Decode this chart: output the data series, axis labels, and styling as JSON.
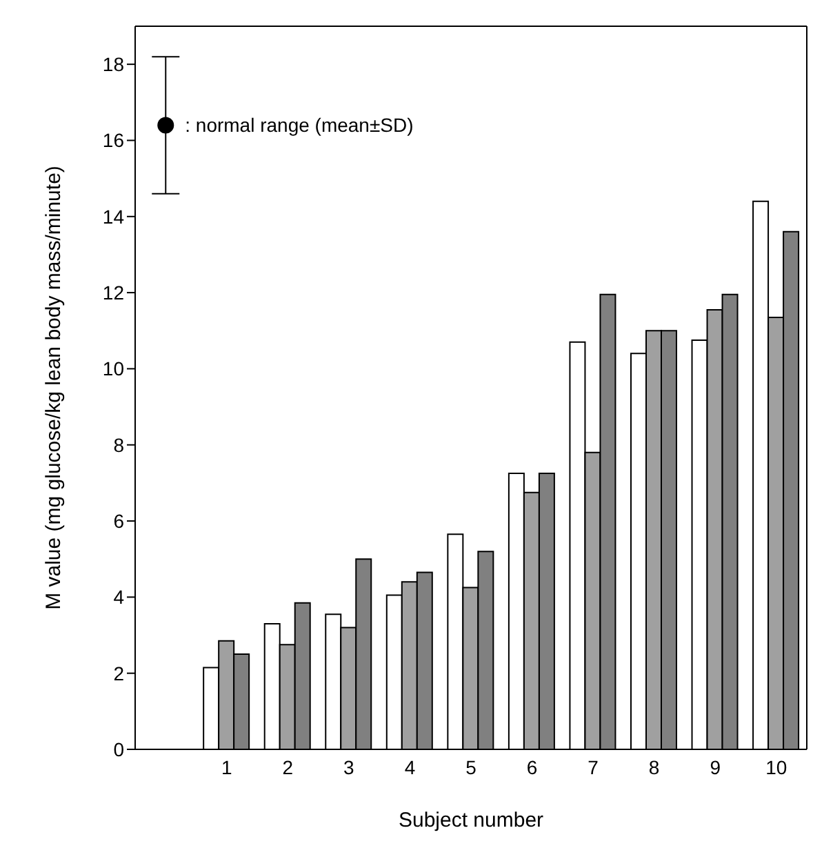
{
  "chart_data": {
    "type": "bar",
    "xlabel": "Subject number",
    "ylabel": "M value (mg glucose/kg lean body mass/minute)",
    "categories": [
      null,
      "1",
      "2",
      "3",
      "4",
      "5",
      "6",
      "7",
      "8",
      "9",
      "10"
    ],
    "series": [
      {
        "color": "#ffffff",
        "values": [
          null,
          2.15,
          3.3,
          3.55,
          4.05,
          5.65,
          7.25,
          10.7,
          10.4,
          10.75,
          14.4
        ]
      },
      {
        "color": "#a0a0a0",
        "values": [
          null,
          2.85,
          2.75,
          3.2,
          4.4,
          4.25,
          6.75,
          7.8,
          11.0,
          11.55,
          11.35
        ]
      },
      {
        "color": "#808080",
        "values": [
          null,
          2.5,
          3.85,
          5.0,
          4.65,
          5.2,
          7.25,
          11.95,
          11.0,
          11.95,
          13.6
        ]
      },
      {
        "type": "scatter",
        "color": "#000000",
        "marker": "circle",
        "values": [
          16.4,
          null,
          null,
          null,
          null,
          null,
          null,
          null,
          null,
          null,
          null
        ],
        "errors": [
          [
            14.6,
            18.2
          ],
          null,
          null,
          null,
          null,
          null,
          null,
          null,
          null,
          null,
          null
        ]
      }
    ],
    "annotations": [
      ": normal range (mean±SD)"
    ],
    "ylim": [
      0,
      19
    ],
    "yticks": [
      0,
      2,
      4,
      6,
      8,
      10,
      12,
      14,
      16,
      18
    ],
    "grid": false,
    "legend": false
  }
}
